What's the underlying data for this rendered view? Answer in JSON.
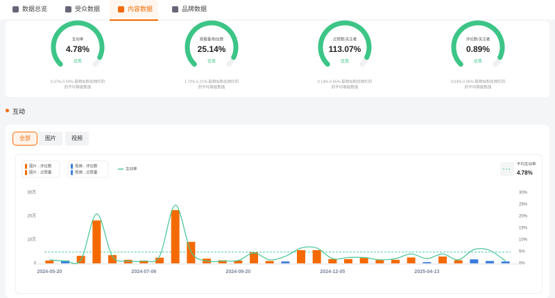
{
  "tabs": [
    "数据总览",
    "受众数据",
    "内容数据",
    "品牌数据"
  ],
  "metrics": [
    {
      "label": "互动率",
      "value": "4.78%",
      "rating": "优秀",
      "note": [
        "0.37%-0.69% 是相似粉丝网红的",
        "的平均等级数值"
      ]
    },
    {
      "label": "观看量/粉丝数",
      "value": "25.14%",
      "rating": "优秀",
      "note": [
        "1.72%-5.21% 是相似粉丝网红的",
        "的平均等级数值"
      ]
    },
    {
      "label": "点赞数/关注者",
      "value": "113.07%",
      "rating": "优秀",
      "note": [
        "0.14%-0.65% 是相似粉丝网红的",
        "的平均等级数值"
      ]
    },
    {
      "label": "评论数/关注者",
      "value": "0.89%",
      "rating": "优秀",
      "note": [
        "0.03%-0.05% 是相似粉丝网红的",
        "的平均等级数值"
      ]
    }
  ],
  "section_title": "互动",
  "filters": [
    "全部",
    "图片",
    "视频"
  ],
  "chart_data": {
    "type": "bar",
    "categories": [
      "2024-05-20",
      null,
      null,
      null,
      null,
      null,
      "2024-07-06",
      null,
      null,
      null,
      null,
      null,
      "2024-09-20",
      null,
      null,
      null,
      null,
      null,
      "2024-12-05",
      null,
      null,
      null,
      null,
      null,
      "2025-04-13",
      null,
      null,
      null,
      null,
      null
    ],
    "ylim": [
      0,
      30
    ],
    "yticks": [
      0,
      {
        "value": 10,
        "label": "10万"
      },
      {
        "value": 20,
        "label": "20万"
      },
      {
        "value": 30,
        "label": "30万"
      }
    ],
    "y2lim": [
      0,
      30
    ],
    "y2ticks": [
      {
        "value": 0,
        "label": "0%"
      },
      {
        "value": 5,
        "label": "5%"
      },
      {
        "value": 10,
        "label": "10%"
      },
      {
        "value": 15,
        "label": "15%"
      },
      {
        "value": 20,
        "label": "20%"
      },
      {
        "value": 25,
        "label": "25%"
      },
      {
        "value": 30,
        "label": "30%"
      }
    ],
    "series": [
      {
        "name": "图片 - 评论数",
        "color": "#f56a00",
        "values": [
          null,
          null,
          null,
          null,
          null,
          null,
          null,
          null,
          null,
          null,
          null,
          null,
          null,
          null,
          null,
          null,
          null,
          null,
          null,
          null,
          null,
          null,
          null,
          null,
          null,
          null,
          null,
          null,
          null,
          null
        ]
      },
      {
        "name": "图片 - 点赞量",
        "color": "#f56a00",
        "values": [
          1.2,
          null,
          3.2,
          18.2,
          3.5,
          1.5,
          1.2,
          2.4,
          22.6,
          9.1,
          2,
          1.3,
          1.2,
          4.7,
          1,
          null,
          5.6,
          5.6,
          1.8,
          1.8,
          2.3,
          1.4,
          1.5,
          2.5,
          null,
          2.9,
          1.3,
          null,
          null,
          null
        ]
      },
      {
        "name": "视频 - 评论数",
        "color": "#3b7ddd",
        "values": [
          null,
          null,
          null,
          null,
          null,
          null,
          null,
          null,
          null,
          null,
          null,
          null,
          null,
          null,
          null,
          null,
          null,
          null,
          null,
          null,
          null,
          null,
          null,
          null,
          null,
          null,
          null,
          null,
          null,
          null
        ]
      },
      {
        "name": "视频 - 点赞量",
        "color": "#3b7ddd",
        "values": [
          null,
          1.2,
          null,
          null,
          null,
          null,
          null,
          null,
          null,
          null,
          null,
          null,
          null,
          null,
          null,
          0.8,
          null,
          null,
          null,
          null,
          null,
          null,
          null,
          null,
          0.5,
          null,
          null,
          1.7,
          1,
          0.8
        ]
      },
      {
        "name": "互动率",
        "type": "line",
        "axis": "y2",
        "color": "#4cc79a",
        "values": [
          1.5,
          1,
          1.5,
          21,
          3,
          1,
          1,
          3,
          24.7,
          5,
          1,
          1,
          1.2,
          4.4,
          1.5,
          3,
          6.5,
          6.5,
          2,
          2.5,
          2.5,
          1.5,
          2,
          4,
          2,
          4,
          1.5,
          5.9,
          5.5,
          1
        ]
      }
    ],
    "average": {
      "label": "平均互动率",
      "value": 4.78,
      "value_label": "4.78%"
    }
  }
}
